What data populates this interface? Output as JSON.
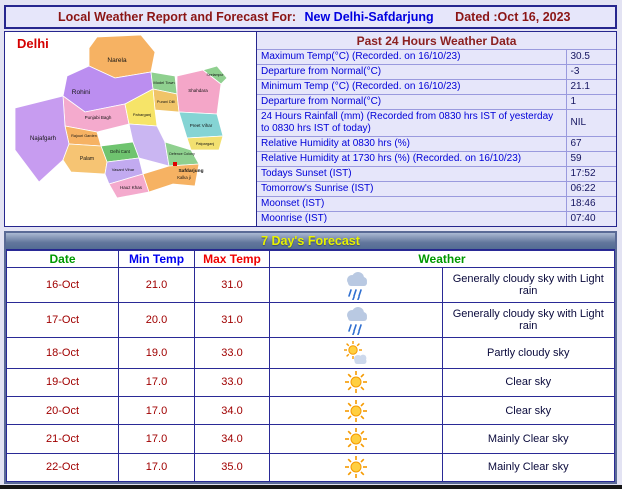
{
  "header": {
    "prefix": "Local Weather Report and Forecast For:",
    "location": "New Delhi-Safdarjung",
    "dated": "Dated :Oct 16, 2023"
  },
  "map": {
    "title": "Delhi",
    "marker": "Safdarjung",
    "districts": [
      {
        "name": "Narela"
      },
      {
        "name": "Rohini"
      },
      {
        "name": "Model Town"
      },
      {
        "name": "Purani Dilli"
      },
      {
        "name": "Shahdara"
      },
      {
        "name": "Seelampur"
      },
      {
        "name": "Preet Vihar"
      },
      {
        "name": "Patparganj"
      },
      {
        "name": "Punjabi Bagh"
      },
      {
        "name": "Paharganj"
      },
      {
        "name": "Rajouri Garden"
      },
      {
        "name": "Delhi Cant"
      },
      {
        "name": "Najafgarh"
      },
      {
        "name": "Palam"
      },
      {
        "name": "Vasant Vihar"
      },
      {
        "name": "Hauz Khas"
      },
      {
        "name": "Defence Colony"
      },
      {
        "name": "Kalka ji"
      }
    ]
  },
  "past24": {
    "title": "Past 24 Hours Weather Data",
    "rows": [
      {
        "label": "Maximum Temp(°C) (Recorded. on 16/10/23)",
        "value": "30.5"
      },
      {
        "label": "Departure from Normal(°C)",
        "value": "-3"
      },
      {
        "label": "Minimum Temp (°C) (Recorded. on 16/10/23)",
        "value": "21.1"
      },
      {
        "label": "Departure from Normal(°C)",
        "value": "1"
      },
      {
        "label": "24 Hours Rainfall (mm) (Recorded from 0830 hrs IST of yesterday to 0830 hrs IST of today)",
        "value": "NIL"
      },
      {
        "label": "Relative Humidity at 0830 hrs (%)",
        "value": "67"
      },
      {
        "label": "Relative Humidity at 1730 hrs (%) (Recorded. on 16/10/23)",
        "value": "59"
      },
      {
        "label": "Todays Sunset (IST)",
        "value": "17:52"
      },
      {
        "label": "Tomorrow's Sunrise (IST)",
        "value": "06:22"
      },
      {
        "label": "Moonset (IST)",
        "value": "18:46"
      },
      {
        "label": "Moonrise (IST)",
        "value": "07:40"
      }
    ]
  },
  "forecast": {
    "title": "7 Day's Forecast",
    "columns": {
      "date": "Date",
      "min": "Min Temp",
      "max": "Max Temp",
      "weather": "Weather"
    },
    "rows": [
      {
        "date": "16-Oct",
        "min": "21.0",
        "max": "31.0",
        "icon": "rain-icon",
        "desc": "Generally cloudy sky with Light rain"
      },
      {
        "date": "17-Oct",
        "min": "20.0",
        "max": "31.0",
        "icon": "rain-icon",
        "desc": "Generally cloudy sky with Light rain"
      },
      {
        "date": "18-Oct",
        "min": "19.0",
        "max": "33.0",
        "icon": "partly-cloudy-icon",
        "desc": "Partly cloudy sky"
      },
      {
        "date": "19-Oct",
        "min": "17.0",
        "max": "33.0",
        "icon": "sun-icon",
        "desc": "Clear sky"
      },
      {
        "date": "20-Oct",
        "min": "17.0",
        "max": "34.0",
        "icon": "sun-icon",
        "desc": "Clear sky"
      },
      {
        "date": "21-Oct",
        "min": "17.0",
        "max": "34.0",
        "icon": "sun-icon",
        "desc": "Mainly Clear sky"
      },
      {
        "date": "22-Oct",
        "min": "17.0",
        "max": "35.0",
        "icon": "sun-icon",
        "desc": "Mainly Clear sky"
      }
    ]
  },
  "colors": {
    "accent_navy": "#26268e",
    "header_maroon": "#8b1515",
    "link_blue": "#0000e0",
    "forecast_title_yellow": "#e8f200",
    "value_red": "#a00000"
  }
}
